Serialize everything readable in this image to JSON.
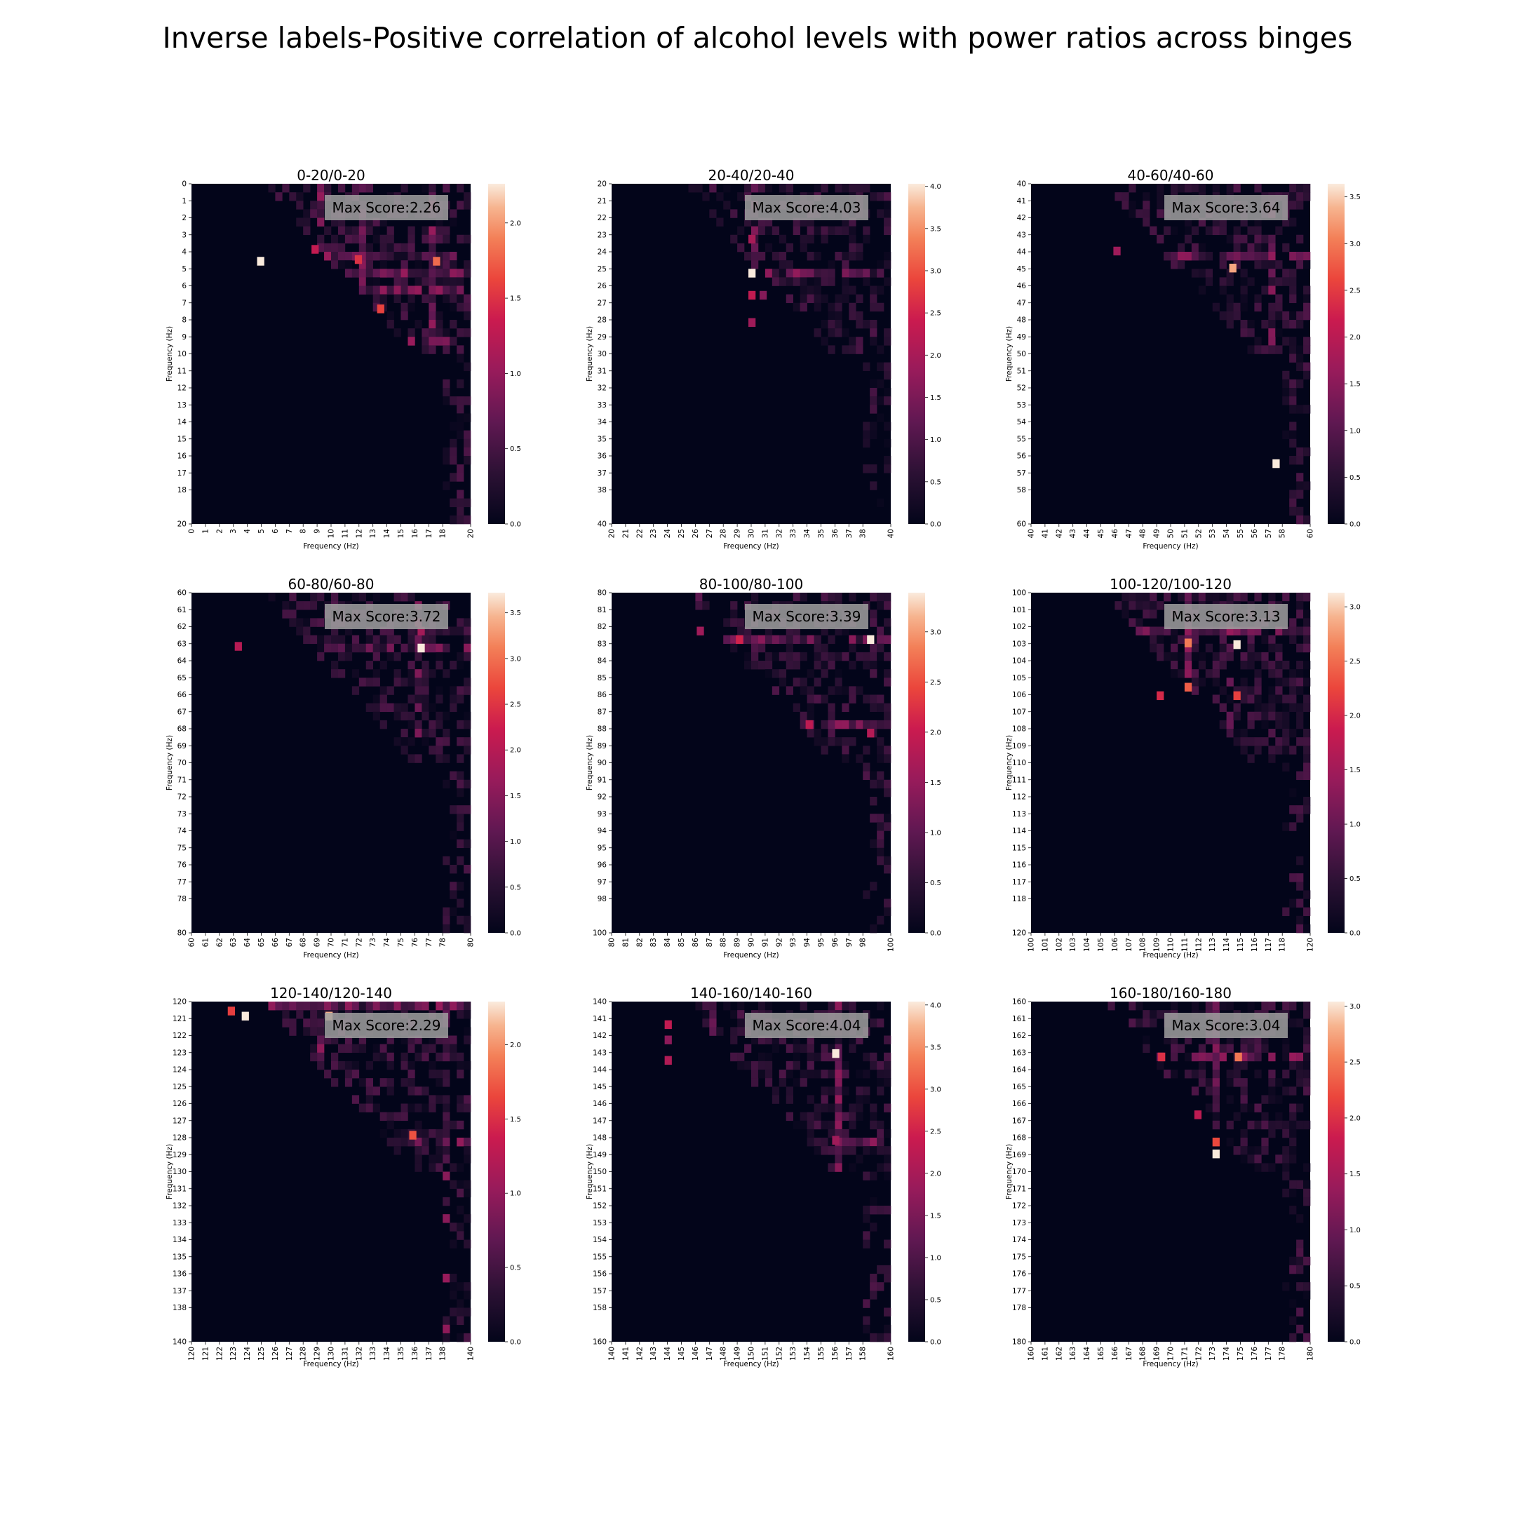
{
  "figure": {
    "title": "Inverse labels-Positive correlation of alcohol levels with power ratios across binges"
  },
  "chart_data": [
    {
      "type": "heatmap",
      "title": "0-20/0-20",
      "xlabel": "Frequency (Hz)",
      "ylabel": "Frequency (Hz)",
      "range": [
        0,
        20
      ],
      "resolution_hz": 0.5,
      "annotation": "Max Score:2.26",
      "max_score": 2.26,
      "colorbar": {
        "min": 0,
        "max": 2.26,
        "ticks": [
          "0.0",
          "0.5",
          "1.0",
          "1.5",
          "2.0"
        ],
        "tick_values": [
          0,
          0.5,
          1,
          1.5,
          2
        ]
      },
      "x_ticks": [
        "0",
        "1",
        "2",
        "3",
        "4",
        "5",
        "6",
        "7",
        "8",
        "9",
        "10",
        "11",
        "12",
        "13",
        "14",
        "15",
        "16",
        "17",
        "18",
        "20"
      ],
      "y_ticks": [
        "0",
        "1",
        "2",
        "3",
        "4",
        "5",
        "6",
        "7",
        "8",
        "9",
        "10",
        "11",
        "12",
        "13",
        "14",
        "15",
        "16",
        "17",
        "18",
        "20"
      ],
      "hot_rows": [
        4,
        5,
        6,
        9
      ],
      "hot_cols": [
        9,
        12,
        17
      ],
      "hotspots": [
        {
          "x": 4.7,
          "y": 4.3,
          "v": 2.26
        },
        {
          "x": 17.3,
          "y": 4.3,
          "v": 1.8
        },
        {
          "x": 13.3,
          "y": 7.1,
          "v": 1.6
        },
        {
          "x": 11.7,
          "y": 4.2,
          "v": 1.5
        },
        {
          "x": 8.6,
          "y": 3.6,
          "v": 1.3
        }
      ]
    },
    {
      "type": "heatmap",
      "title": "20-40/20-40",
      "xlabel": "Frequency (Hz)",
      "ylabel": "Frequency (Hz)",
      "range": [
        20,
        40
      ],
      "resolution_hz": 0.5,
      "annotation": "Max Score:4.03",
      "max_score": 4.03,
      "colorbar": {
        "min": 0,
        "max": 4.03,
        "ticks": [
          "0.0",
          "0.5",
          "1.0",
          "1.5",
          "2.0",
          "2.5",
          "3.0",
          "3.5",
          "4.0"
        ],
        "tick_values": [
          0,
          0.5,
          1,
          1.5,
          2,
          2.5,
          3,
          3.5,
          4
        ]
      },
      "x_ticks": [
        "20",
        "21",
        "22",
        "23",
        "24",
        "25",
        "26",
        "27",
        "28",
        "29",
        "30",
        "31",
        "32",
        "33",
        "34",
        "35",
        "36",
        "37",
        "38",
        "40"
      ],
      "y_ticks": [
        "20",
        "21",
        "22",
        "23",
        "24",
        "25",
        "26",
        "27",
        "28",
        "29",
        "30",
        "31",
        "32",
        "33",
        "34",
        "35",
        "36",
        "37",
        "38",
        "40"
      ],
      "hot_rows": [
        25
      ],
      "hot_cols": [
        30
      ],
      "hotspots": [
        {
          "x": 29.8,
          "y": 25.0,
          "v": 4.03
        },
        {
          "x": 29.8,
          "y": 26.3,
          "v": 2.3
        },
        {
          "x": 29.8,
          "y": 23.0,
          "v": 2.0
        },
        {
          "x": 29.8,
          "y": 27.9,
          "v": 1.9
        },
        {
          "x": 30.6,
          "y": 26.3,
          "v": 1.6
        }
      ]
    },
    {
      "type": "heatmap",
      "title": "40-60/40-60",
      "xlabel": "Frequency (Hz)",
      "ylabel": "Frequency (Hz)",
      "range": [
        40,
        60
      ],
      "resolution_hz": 0.5,
      "annotation": "Max Score:3.64",
      "max_score": 3.64,
      "colorbar": {
        "min": 0,
        "max": 3.64,
        "ticks": [
          "0.0",
          "0.5",
          "1.0",
          "1.5",
          "2.0",
          "2.5",
          "3.0",
          "3.5"
        ],
        "tick_values": [
          0,
          0.5,
          1,
          1.5,
          2,
          2.5,
          3,
          3.5
        ]
      },
      "x_ticks": [
        "40",
        "41",
        "42",
        "43",
        "44",
        "45",
        "46",
        "47",
        "48",
        "49",
        "50",
        "51",
        "52",
        "53",
        "54",
        "55",
        "56",
        "57",
        "58",
        "60"
      ],
      "y_ticks": [
        "40",
        "41",
        "42",
        "43",
        "44",
        "45",
        "46",
        "47",
        "48",
        "49",
        "50",
        "51",
        "52",
        "53",
        "54",
        "55",
        "56",
        "57",
        "58",
        "60"
      ],
      "hot_rows": [
        44
      ],
      "hot_cols": [
        57
      ],
      "hotspots": [
        {
          "x": 57.3,
          "y": 56.2,
          "v": 3.64
        },
        {
          "x": 54.2,
          "y": 44.7,
          "v": 3.3
        },
        {
          "x": 45.9,
          "y": 43.7,
          "v": 1.7
        }
      ]
    },
    {
      "type": "heatmap",
      "title": "60-80/60-80",
      "xlabel": "Frequency (Hz)",
      "ylabel": "Frequency (Hz)",
      "range": [
        60,
        80
      ],
      "resolution_hz": 0.5,
      "annotation": "Max Score:3.72",
      "max_score": 3.72,
      "colorbar": {
        "min": 0,
        "max": 3.72,
        "ticks": [
          "0.0",
          "0.5",
          "1.0",
          "1.5",
          "2.0",
          "2.5",
          "3.0",
          "3.5"
        ],
        "tick_values": [
          0,
          0.5,
          1,
          1.5,
          2,
          2.5,
          3,
          3.5
        ]
      },
      "x_ticks": [
        "60",
        "61",
        "62",
        "63",
        "64",
        "65",
        "66",
        "67",
        "68",
        "69",
        "70",
        "71",
        "72",
        "73",
        "74",
        "75",
        "76",
        "77",
        "78",
        "80"
      ],
      "y_ticks": [
        "60",
        "61",
        "62",
        "63",
        "64",
        "65",
        "66",
        "67",
        "68",
        "69",
        "70",
        "71",
        "72",
        "73",
        "74",
        "75",
        "76",
        "77",
        "78",
        "80"
      ],
      "hot_rows": [
        63
      ],
      "hot_cols": [
        76
      ],
      "hotspots": [
        {
          "x": 76.2,
          "y": 63.0,
          "v": 3.72
        },
        {
          "x": 63.1,
          "y": 62.9,
          "v": 2.0
        },
        {
          "x": 76.2,
          "y": 62.0,
          "v": 1.8
        }
      ]
    },
    {
      "type": "heatmap",
      "title": "80-100/80-100",
      "xlabel": "Frequency (Hz)",
      "ylabel": "Frequency (Hz)",
      "range": [
        80,
        100
      ],
      "resolution_hz": 0.5,
      "annotation": "Max Score:3.39",
      "max_score": 3.39,
      "colorbar": {
        "min": 0,
        "max": 3.39,
        "ticks": [
          "0.0",
          "0.5",
          "1.0",
          "1.5",
          "2.0",
          "2.5",
          "3.0"
        ],
        "tick_values": [
          0,
          0.5,
          1,
          1.5,
          2,
          2.5,
          3
        ]
      },
      "x_ticks": [
        "80",
        "81",
        "82",
        "83",
        "84",
        "85",
        "86",
        "87",
        "88",
        "89",
        "90",
        "91",
        "92",
        "93",
        "94",
        "95",
        "96",
        "97",
        "98",
        "100"
      ],
      "y_ticks": [
        "80",
        "81",
        "82",
        "83",
        "84",
        "85",
        "86",
        "87",
        "88",
        "89",
        "90",
        "91",
        "92",
        "93",
        "94",
        "95",
        "96",
        "97",
        "98",
        "100"
      ],
      "hot_rows": [
        82.5,
        87.5
      ],
      "hot_cols": [
        86
      ],
      "hotspots": [
        {
          "x": 98.3,
          "y": 82.5,
          "v": 3.39
        },
        {
          "x": 88.9,
          "y": 82.5,
          "v": 2.1
        },
        {
          "x": 93.9,
          "y": 87.5,
          "v": 1.9
        },
        {
          "x": 98.3,
          "y": 88.0,
          "v": 1.8
        },
        {
          "x": 86.1,
          "y": 82.0,
          "v": 1.6
        }
      ]
    },
    {
      "type": "heatmap",
      "title": "100-120/100-120",
      "xlabel": "Frequency (Hz)",
      "ylabel": "Frequency (Hz)",
      "range": [
        100,
        120
      ],
      "resolution_hz": 0.5,
      "annotation": "Max Score:3.13",
      "max_score": 3.13,
      "colorbar": {
        "min": 0,
        "max": 3.13,
        "ticks": [
          "0.0",
          "0.5",
          "1.0",
          "1.5",
          "2.0",
          "2.5",
          "3.0"
        ],
        "tick_values": [
          0,
          0.5,
          1,
          1.5,
          2,
          2.5,
          3
        ]
      },
      "x_ticks": [
        "100",
        "101",
        "102",
        "103",
        "104",
        "105",
        "106",
        "107",
        "108",
        "109",
        "110",
        "111",
        "112",
        "113",
        "114",
        "115",
        "116",
        "117",
        "118",
        "120"
      ],
      "y_ticks": [
        "100",
        "101",
        "102",
        "103",
        "104",
        "105",
        "106",
        "107",
        "108",
        "109",
        "110",
        "111",
        "112",
        "113",
        "114",
        "115",
        "116",
        "117",
        "118",
        "120"
      ],
      "hot_rows": [
        102
      ],
      "hot_cols": [
        111,
        114
      ],
      "hotspots": [
        {
          "x": 114.5,
          "y": 102.8,
          "v": 3.13
        },
        {
          "x": 111.0,
          "y": 102.7,
          "v": 2.6
        },
        {
          "x": 111.0,
          "y": 105.3,
          "v": 2.4
        },
        {
          "x": 114.5,
          "y": 105.8,
          "v": 2.2
        },
        {
          "x": 109.0,
          "y": 105.8,
          "v": 2.0
        }
      ]
    },
    {
      "type": "heatmap",
      "title": "120-140/120-140",
      "xlabel": "Frequency (Hz)",
      "ylabel": "Frequency (Hz)",
      "range": [
        120,
        140
      ],
      "resolution_hz": 0.5,
      "annotation": "Max Score:2.29",
      "max_score": 2.29,
      "colorbar": {
        "min": 0,
        "max": 2.29,
        "ticks": [
          "0.0",
          "0.5",
          "1.0",
          "1.5",
          "2.0"
        ],
        "tick_values": [
          0,
          0.5,
          1,
          1.5,
          2
        ]
      },
      "x_ticks": [
        "120",
        "121",
        "122",
        "123",
        "124",
        "125",
        "126",
        "127",
        "128",
        "129",
        "130",
        "131",
        "132",
        "133",
        "134",
        "135",
        "136",
        "137",
        "138",
        "140"
      ],
      "y_ticks": [
        "120",
        "121",
        "122",
        "123",
        "124",
        "125",
        "126",
        "127",
        "128",
        "129",
        "130",
        "131",
        "132",
        "133",
        "134",
        "135",
        "136",
        "137",
        "138",
        "140"
      ],
      "hot_rows": [
        120,
        128
      ],
      "hot_cols": [
        129,
        138
      ],
      "hotspots": [
        {
          "x": 123.6,
          "y": 120.6,
          "v": 2.29
        },
        {
          "x": 129.6,
          "y": 120.6,
          "v": 2.1
        },
        {
          "x": 135.6,
          "y": 127.6,
          "v": 1.7
        },
        {
          "x": 122.6,
          "y": 120.3,
          "v": 1.6
        }
      ]
    },
    {
      "type": "heatmap",
      "title": "140-160/140-160",
      "xlabel": "Frequency (Hz)",
      "ylabel": "Frequency (Hz)",
      "range": [
        140,
        160
      ],
      "resolution_hz": 0.5,
      "annotation": "Max Score:4.04",
      "max_score": 4.04,
      "colorbar": {
        "min": 0,
        "max": 4.04,
        "ticks": [
          "0.0",
          "0.5",
          "1.0",
          "1.5",
          "2.0",
          "2.5",
          "3.0",
          "3.5",
          "4.0"
        ],
        "tick_values": [
          0,
          0.5,
          1,
          1.5,
          2,
          2.5,
          3,
          3.5,
          4
        ]
      },
      "x_ticks": [
        "140",
        "141",
        "142",
        "143",
        "144",
        "145",
        "146",
        "147",
        "148",
        "149",
        "150",
        "151",
        "152",
        "153",
        "154",
        "155",
        "156",
        "157",
        "158",
        "160"
      ],
      "y_ticks": [
        "140",
        "141",
        "142",
        "143",
        "144",
        "145",
        "146",
        "147",
        "148",
        "149",
        "150",
        "151",
        "152",
        "153",
        "154",
        "155",
        "156",
        "157",
        "158",
        "160"
      ],
      "hot_rows": [
        148
      ],
      "hot_cols": [
        147,
        156
      ],
      "hotspots": [
        {
          "x": 155.8,
          "y": 142.8,
          "v": 4.04
        },
        {
          "x": 143.8,
          "y": 141.1,
          "v": 2.3
        },
        {
          "x": 143.8,
          "y": 143.2,
          "v": 2.1
        },
        {
          "x": 155.8,
          "y": 147.9,
          "v": 1.9
        },
        {
          "x": 143.8,
          "y": 142.0,
          "v": 1.7
        }
      ]
    },
    {
      "type": "heatmap",
      "title": "160-180/160-180",
      "xlabel": "Frequency (Hz)",
      "ylabel": "Frequency (Hz)",
      "range": [
        160,
        180
      ],
      "resolution_hz": 0.5,
      "annotation": "Max Score:3.04",
      "max_score": 3.04,
      "colorbar": {
        "min": 0,
        "max": 3.04,
        "ticks": [
          "0.0",
          "0.5",
          "1.0",
          "1.5",
          "2.0",
          "2.5",
          "3.0"
        ],
        "tick_values": [
          0,
          0.5,
          1,
          1.5,
          2,
          2.5,
          3
        ]
      },
      "x_ticks": [
        "160",
        "161",
        "162",
        "163",
        "164",
        "165",
        "166",
        "167",
        "168",
        "169",
        "170",
        "171",
        "172",
        "173",
        "174",
        "175",
        "176",
        "177",
        "178",
        "180"
      ],
      "y_ticks": [
        "160",
        "161",
        "162",
        "163",
        "164",
        "165",
        "166",
        "167",
        "168",
        "169",
        "170",
        "171",
        "172",
        "173",
        "174",
        "175",
        "176",
        "177",
        "178",
        "180"
      ],
      "hot_rows": [
        163
      ],
      "hot_cols": [
        173
      ],
      "hotspots": [
        {
          "x": 173.0,
          "y": 168.7,
          "v": 3.04
        },
        {
          "x": 174.6,
          "y": 163.0,
          "v": 2.5
        },
        {
          "x": 169.1,
          "y": 163.0,
          "v": 2.0
        },
        {
          "x": 173.0,
          "y": 168.0,
          "v": 2.2
        },
        {
          "x": 171.7,
          "y": 166.4,
          "v": 1.7
        }
      ]
    }
  ]
}
